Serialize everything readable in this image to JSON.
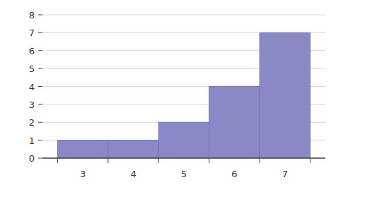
{
  "chart_data": {
    "type": "histogram",
    "bins": [
      2.5,
      3.5,
      4.5,
      5.5,
      6.5,
      7.5
    ],
    "values": [
      1,
      1,
      2,
      4,
      7
    ],
    "color": "#8b88c6",
    "xlim": [
      2.2,
      7.8
    ],
    "xticks": [
      3,
      4,
      5,
      6,
      7
    ],
    "ylim": [
      0,
      8
    ],
    "yticks": [
      0,
      1,
      2,
      3,
      4,
      5,
      6,
      7,
      8
    ],
    "grid": true
  }
}
